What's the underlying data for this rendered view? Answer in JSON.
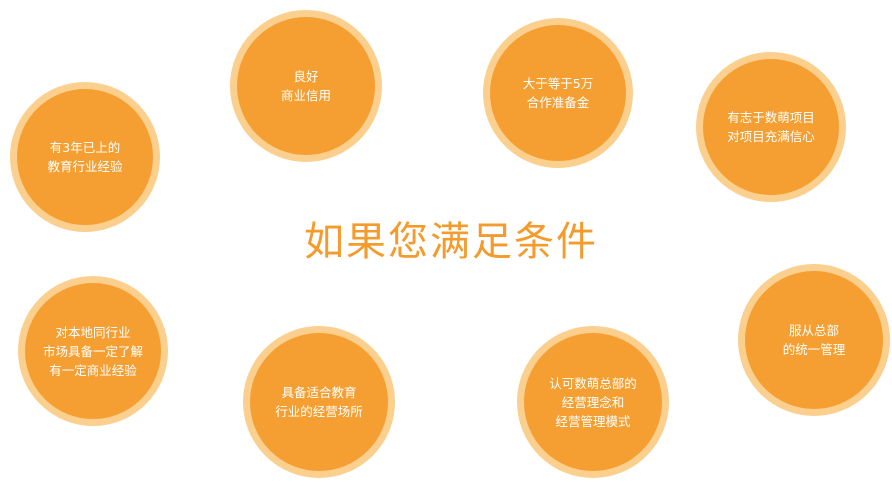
{
  "headline": "如果您满足条件",
  "colors": {
    "bubble_fill": "#f59f32",
    "bubble_ring": "#fbcf8e",
    "headline": "#f49b2c",
    "bubble_text": "#ffffff"
  },
  "conditions": [
    {
      "text": "有3年已上的\n教育行业经验"
    },
    {
      "text": "良好\n商业信用"
    },
    {
      "text": "大于等于5万\n合作准备金"
    },
    {
      "text": "有志于数萌项目\n对项目充满信心"
    },
    {
      "text": "对本地同行业\n市场具备一定了解\n有一定商业经验"
    },
    {
      "text": "具备适合教育\n行业的经营场所"
    },
    {
      "text": "认可数萌总部的\n经营理念和\n经营管理模式"
    },
    {
      "text": "服从总部\n的统一管理"
    }
  ]
}
